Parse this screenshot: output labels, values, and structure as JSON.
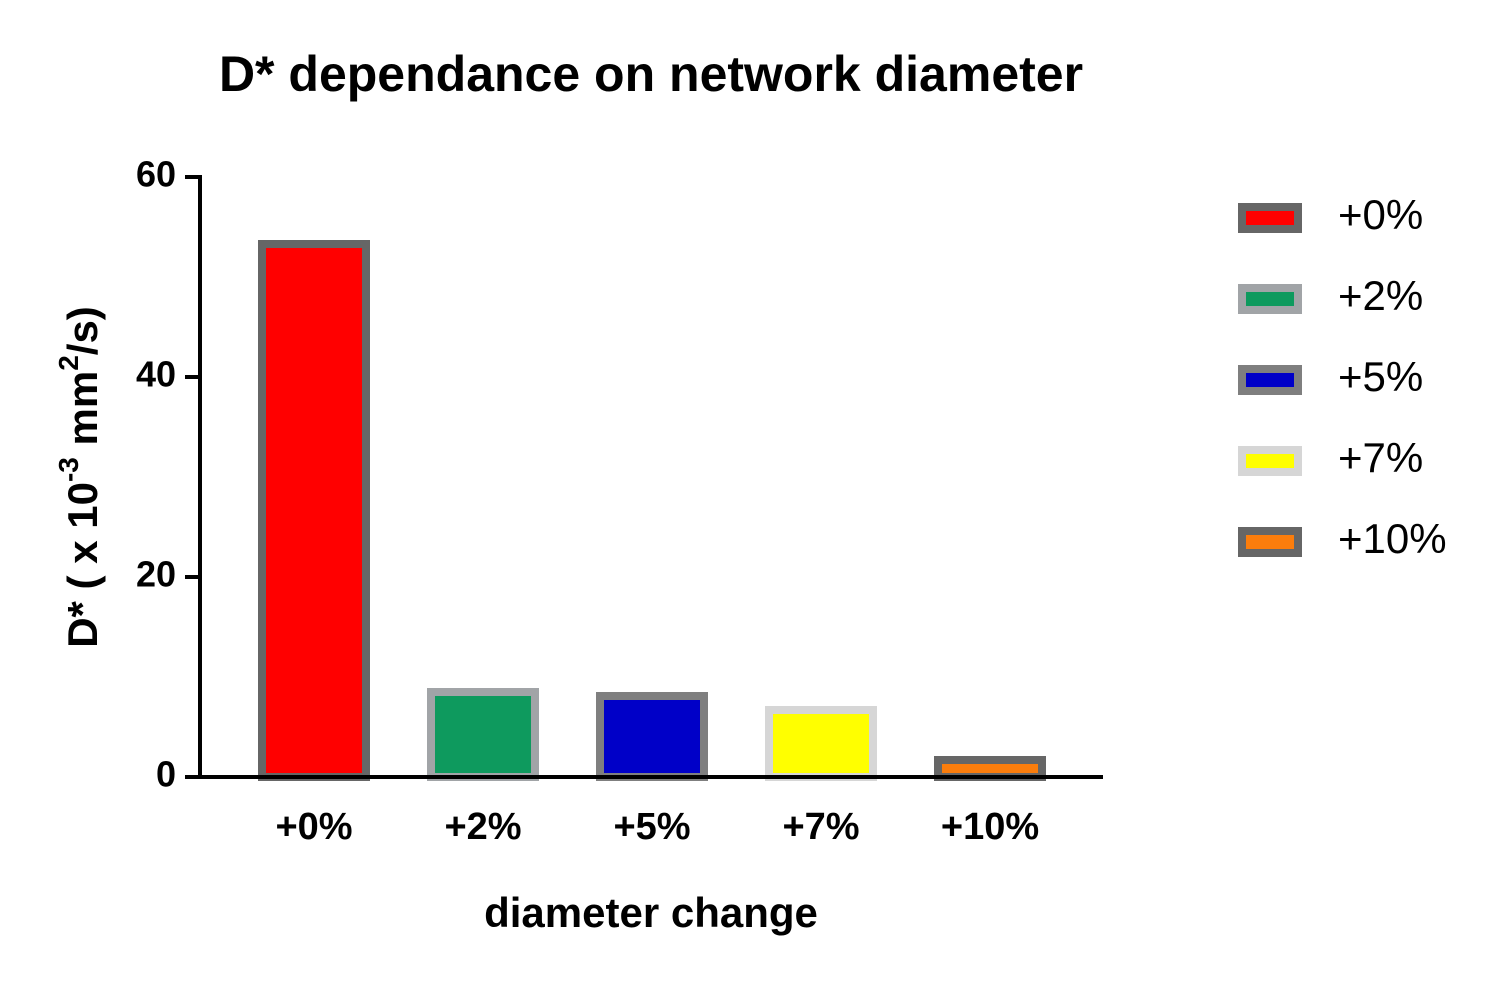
{
  "chart_data": {
    "type": "bar",
    "title": "D* dependance on network diameter",
    "x_label": "diameter change",
    "y_label": [
      "D* ( x 10",
      "-3",
      " mm",
      "2",
      "/s)"
    ],
    "categories": [
      "+0%",
      "+2%",
      "+5%",
      "+7%",
      "+10%"
    ],
    "values": [
      53.3,
      8.5,
      8.1,
      6.7,
      1.7
    ],
    "colors": [
      "#ff0000",
      "#0e9a5e",
      "#0000c8",
      "#ffff00",
      "#fb7d0c"
    ],
    "edge_colors": [
      "#666666",
      "#a1a4a7",
      "#7f7f7f",
      "#d6d6d6",
      "#666666"
    ],
    "ylim": [
      0,
      60
    ],
    "yticks": [
      0,
      20,
      40,
      60
    ],
    "legend": "right"
  }
}
